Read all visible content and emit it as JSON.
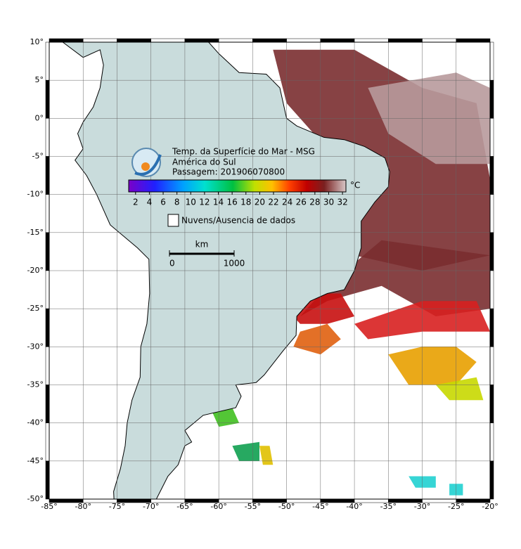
{
  "map": {
    "xlim": [
      -85,
      -20
    ],
    "ylim": [
      -50,
      10
    ],
    "xticks": [
      {
        "value": -85,
        "label": "-85°"
      },
      {
        "value": -80,
        "label": "-80°"
      },
      {
        "value": -75,
        "label": "-75°"
      },
      {
        "value": -70,
        "label": "-70°"
      },
      {
        "value": -65,
        "label": "-65°"
      },
      {
        "value": -60,
        "label": "-60°"
      },
      {
        "value": -55,
        "label": "-55°"
      },
      {
        "value": -50,
        "label": "-50°"
      },
      {
        "value": -45,
        "label": "-45°"
      },
      {
        "value": -40,
        "label": "-40°"
      },
      {
        "value": -35,
        "label": "-35°"
      },
      {
        "value": -30,
        "label": "-30°"
      },
      {
        "value": -25,
        "label": "-25°"
      },
      {
        "value": -20,
        "label": "-20°"
      }
    ],
    "yticks": [
      {
        "value": 10,
        "label": "10°"
      },
      {
        "value": 5,
        "label": "5°"
      },
      {
        "value": 0,
        "label": "0°"
      },
      {
        "value": -5,
        "label": "-5°"
      },
      {
        "value": -10,
        "label": "-10°"
      },
      {
        "value": -15,
        "label": "-15°"
      },
      {
        "value": -20,
        "label": "-20°"
      },
      {
        "value": -25,
        "label": "-25°"
      },
      {
        "value": -30,
        "label": "-30°"
      },
      {
        "value": -35,
        "label": "-35°"
      },
      {
        "value": -40,
        "label": "-40°"
      },
      {
        "value": -45,
        "label": "-45°"
      },
      {
        "value": -50,
        "label": "-50°"
      }
    ],
    "grid": true
  },
  "legend": {
    "title_lines": [
      "Temp. da Superfície do Mar - MSG",
      "América do Sul",
      "Passagem: 201906070800"
    ],
    "colorbar": {
      "lim": [
        1,
        32.5
      ],
      "ticks": [
        2,
        4,
        6,
        8,
        10,
        12,
        14,
        16,
        18,
        20,
        22,
        24,
        26,
        28,
        30,
        32
      ],
      "unit": "°C"
    },
    "cloud_label": "Nuvens/Ausencia de dados",
    "scale": {
      "unit": "km",
      "ticks": [
        0,
        1000
      ]
    }
  }
}
